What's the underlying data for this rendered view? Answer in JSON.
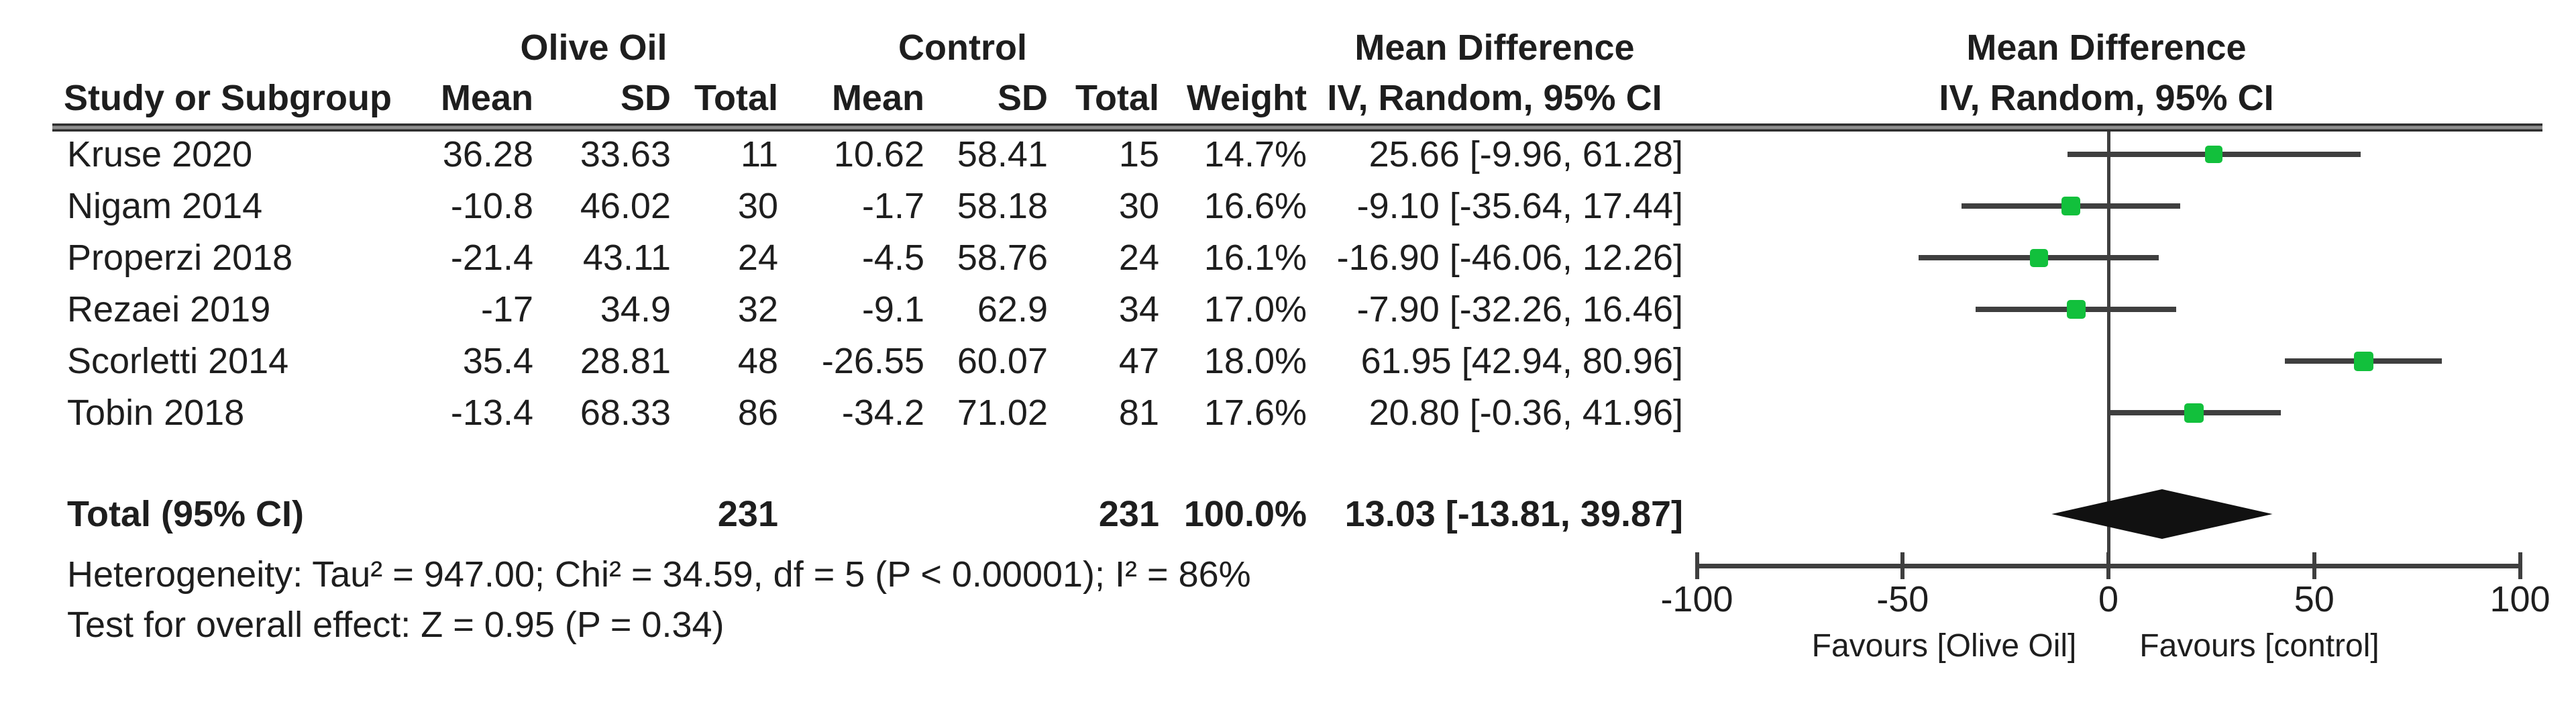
{
  "header": {
    "group1": "Olive Oil",
    "group2": "Control",
    "study_col": "Study or Subgroup",
    "mean_col": "Mean",
    "sd_col": "SD",
    "total_col": "Total",
    "weight_col": "Weight",
    "effect_line1": "Mean Difference",
    "effect_line2": "IV, Random, 95% CI",
    "plot_line1": "Mean Difference",
    "plot_line2": "IV, Random, 95% CI"
  },
  "footer": {
    "total_label": "Total (95% CI)",
    "heterogeneity": "Heterogeneity: Tau² = 947.00; Chi² = 34.59, df = 5 (P < 0.00001); I² = 86%",
    "overall_effect": "Test for overall effect: Z = 0.95 (P = 0.34)"
  },
  "axis": {
    "min": -100,
    "max": 100,
    "ticks": [
      -100,
      -50,
      0,
      50,
      100
    ],
    "favours_left": "Favours [Olive Oil]",
    "favours_right": "Favours [control]"
  },
  "colors": {
    "marker_green": "#12c03c",
    "line_gray": "#3f3f3f",
    "diamond_black": "#111111",
    "text": "#1e1e1e"
  },
  "chart_data": {
    "type": "forest",
    "title": "Mean Difference IV, Random, 95% CI",
    "effect_measure": "Mean Difference, IV, Random, 95% CI",
    "x_range": [
      -100,
      100
    ],
    "x_ticks": [
      -100,
      -50,
      0,
      50,
      100
    ],
    "xlabel_left": "Favours [Olive Oil]",
    "xlabel_right": "Favours [control]",
    "studies": [
      {
        "study": "Kruse 2020",
        "t_mean": "36.28",
        "t_sd": "33.63",
        "t_n": "11",
        "c_mean": "10.62",
        "c_sd": "58.41",
        "c_n": "15",
        "weight": "14.7%",
        "weight_pct": 14.7,
        "md": 25.66,
        "ci_low": -9.96,
        "ci_high": 61.28,
        "md_text": "25.66 [-9.96, 61.28]"
      },
      {
        "study": "Nigam 2014",
        "t_mean": "-10.8",
        "t_sd": "46.02",
        "t_n": "30",
        "c_mean": "-1.7",
        "c_sd": "58.18",
        "c_n": "30",
        "weight": "16.6%",
        "weight_pct": 16.6,
        "md": -9.1,
        "ci_low": -35.64,
        "ci_high": 17.44,
        "md_text": "-9.10 [-35.64, 17.44]"
      },
      {
        "study": "Properzi 2018",
        "t_mean": "-21.4",
        "t_sd": "43.11",
        "t_n": "24",
        "c_mean": "-4.5",
        "c_sd": "58.76",
        "c_n": "24",
        "weight": "16.1%",
        "weight_pct": 16.1,
        "md": -16.9,
        "ci_low": -46.06,
        "ci_high": 12.26,
        "md_text": "-16.90 [-46.06, 12.26]"
      },
      {
        "study": "Rezaei 2019",
        "t_mean": "-17",
        "t_sd": "34.9",
        "t_n": "32",
        "c_mean": "-9.1",
        "c_sd": "62.9",
        "c_n": "34",
        "weight": "17.0%",
        "weight_pct": 17.0,
        "md": -7.9,
        "ci_low": -32.26,
        "ci_high": 16.46,
        "md_text": "-7.90 [-32.26, 16.46]"
      },
      {
        "study": "Scorletti 2014",
        "t_mean": "35.4",
        "t_sd": "28.81",
        "t_n": "48",
        "c_mean": "-26.55",
        "c_sd": "60.07",
        "c_n": "47",
        "weight": "18.0%",
        "weight_pct": 18.0,
        "md": 61.95,
        "ci_low": 42.94,
        "ci_high": 80.96,
        "md_text": "61.95 [42.94, 80.96]"
      },
      {
        "study": "Tobin 2018",
        "t_mean": "-13.4",
        "t_sd": "68.33",
        "t_n": "86",
        "c_mean": "-34.2",
        "c_sd": "71.02",
        "c_n": "81",
        "weight": "17.6%",
        "weight_pct": 17.6,
        "md": 20.8,
        "ci_low": -0.36,
        "ci_high": 41.96,
        "md_text": "20.80 [-0.36, 41.96]"
      }
    ],
    "total": {
      "t_n": "231",
      "c_n": "231",
      "weight": "100.0%",
      "md": 13.03,
      "ci_low": -13.81,
      "ci_high": 39.87,
      "md_text": "13.03 [-13.81, 39.87]"
    },
    "heterogeneity": {
      "tau2": 947.0,
      "chi2": 34.59,
      "df": 5,
      "p": "< 0.00001",
      "i2": "86%"
    },
    "overall_effect": {
      "z": 0.95,
      "p": "0.34"
    }
  }
}
